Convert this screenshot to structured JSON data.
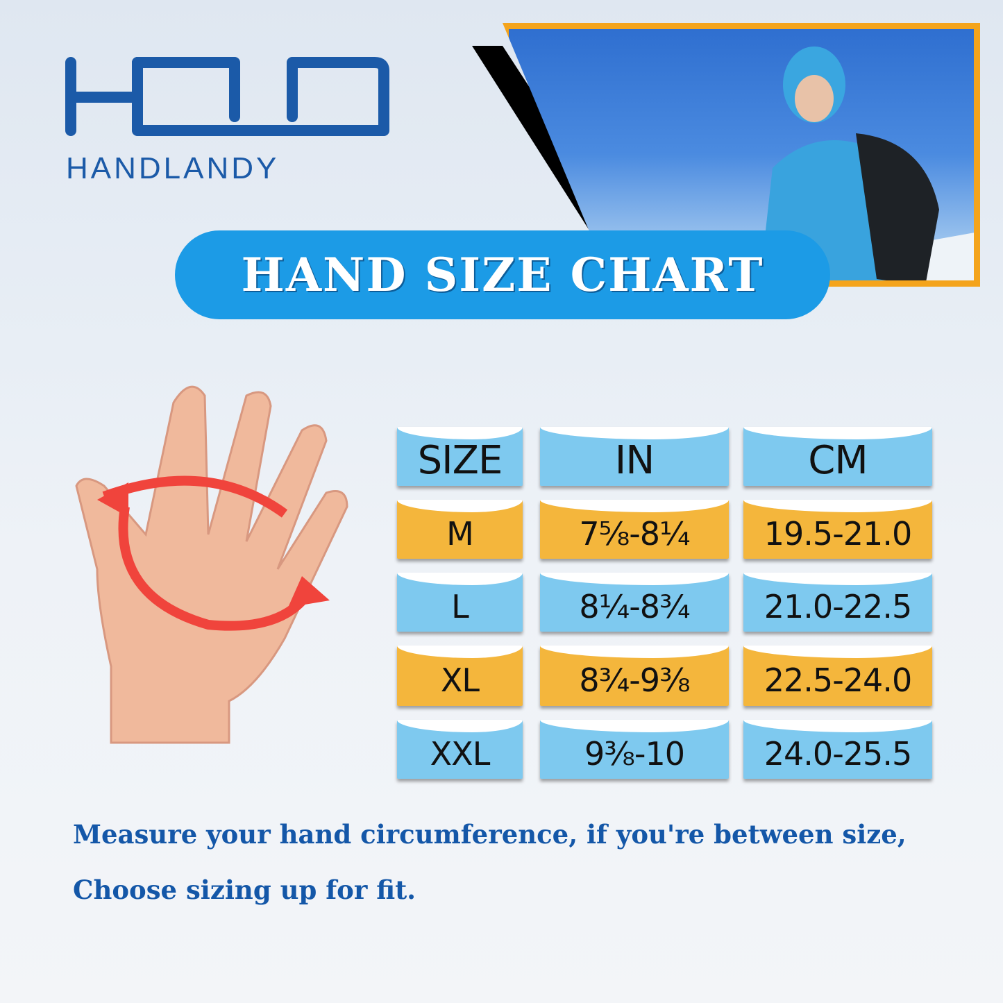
{
  "brand": {
    "logo_mark": "HD",
    "name": "HANDLANDY",
    "color": "#1b5aa8"
  },
  "banner": {
    "title": "HAND SIZE CHART",
    "color": "#1c9be6"
  },
  "table": {
    "headers": [
      "SIZE",
      "IN",
      "CM"
    ],
    "rows": [
      {
        "size": "M",
        "in": "7⅝-8¼",
        "cm": "19.5-21.0"
      },
      {
        "size": "L",
        "in": "8¼-8¾",
        "cm": "21.0-22.5"
      },
      {
        "size": "XL",
        "in": "8¾-9⅜",
        "cm": "22.5-24.0"
      },
      {
        "size": "XXL",
        "in": "9⅜-10",
        "cm": "24.0-25.5"
      }
    ],
    "colors": {
      "blue": "#7ec9ef",
      "orange": "#f4b63c"
    }
  },
  "note": {
    "line1": "Measure your hand circumference, if you're between size,",
    "line2": "Choose sizing up for fit."
  }
}
